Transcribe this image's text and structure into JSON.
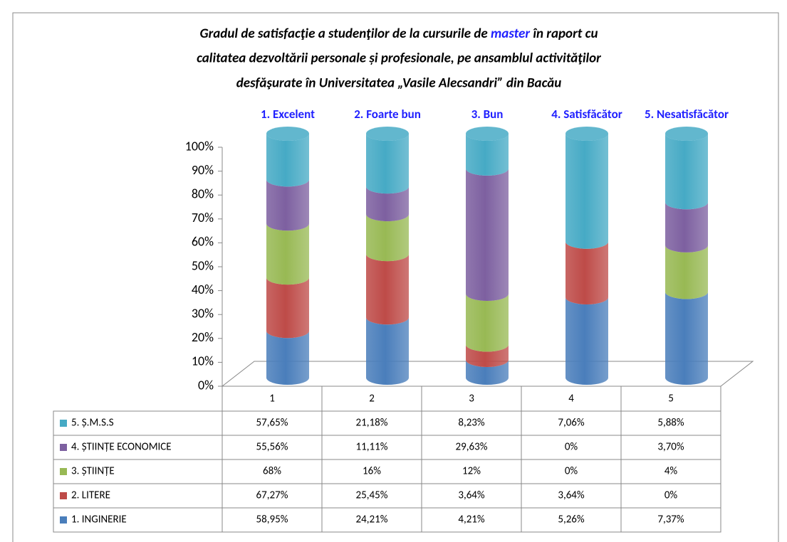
{
  "chart_data": {
    "type": "bar",
    "stacking": "percent",
    "title": [
      [
        "Gradul de satisfacţie a studenţilor de la cursurile de ",
        "master",
        " în raport cu"
      ],
      [
        "calitatea dezvoltării personale și profesionale, pe ansamblul activităţilor"
      ],
      [
        "desfăşurate în Universitatea „Vasile Alecsandri” din Bacău"
      ]
    ],
    "annotations": [
      "1. Excelent",
      "2. Foarte bun",
      "3. Bun",
      "4. Satisfăcător",
      "5. Nesatisfăcător"
    ],
    "categories": [
      "1",
      "2",
      "3",
      "4",
      "5"
    ],
    "series": [
      {
        "name": "1. INGINERIE",
        "color": "#4a7ebb",
        "values": [
          58.95,
          24.21,
          4.21,
          5.26,
          7.37
        ],
        "value_labels": [
          "58,95%",
          "24,21%",
          "4,21%",
          "5,26%",
          "7,37%"
        ]
      },
      {
        "name": "2. LITERE",
        "color": "#be4b48",
        "values": [
          67.27,
          25.45,
          3.64,
          3.64,
          0
        ],
        "value_labels": [
          "67,27%",
          "25,45%",
          "3,64%",
          "3,64%",
          "0%"
        ]
      },
      {
        "name": "3. ȘTIINȚE",
        "color": "#98b954",
        "values": [
          68,
          16,
          12,
          0,
          4
        ],
        "value_labels": [
          "68%",
          "16%",
          "12%",
          "0%",
          "4%"
        ]
      },
      {
        "name": "4. ȘTIINȚE ECONOMICE",
        "color": "#7d60a0",
        "values": [
          55.56,
          11.11,
          29.63,
          0,
          3.7
        ],
        "value_labels": [
          "55,56%",
          "11,11%",
          "29,63%",
          "0%",
          "3,70%"
        ]
      },
      {
        "name": "5. Ș.M.S.S",
        "color": "#46aac5",
        "values": [
          57.65,
          21.18,
          8.23,
          7.06,
          5.88
        ],
        "value_labels": [
          "57,65%",
          "21,18%",
          "8,23%",
          "7,06%",
          "5,88%"
        ]
      }
    ],
    "ylim": [
      0,
      100
    ],
    "yticks": [
      {
        "value": 0,
        "label": "0%"
      },
      {
        "value": 10,
        "label": "10%"
      },
      {
        "value": 20,
        "label": "20%"
      },
      {
        "value": 30,
        "label": "30%"
      },
      {
        "value": 40,
        "label": "40%"
      },
      {
        "value": 50,
        "label": "50%"
      },
      {
        "value": 60,
        "label": "60%"
      },
      {
        "value": 70,
        "label": "70%"
      },
      {
        "value": 80,
        "label": "80%"
      },
      {
        "value": 90,
        "label": "90%"
      },
      {
        "value": 100,
        "label": "100%"
      }
    ],
    "grid": false
  }
}
